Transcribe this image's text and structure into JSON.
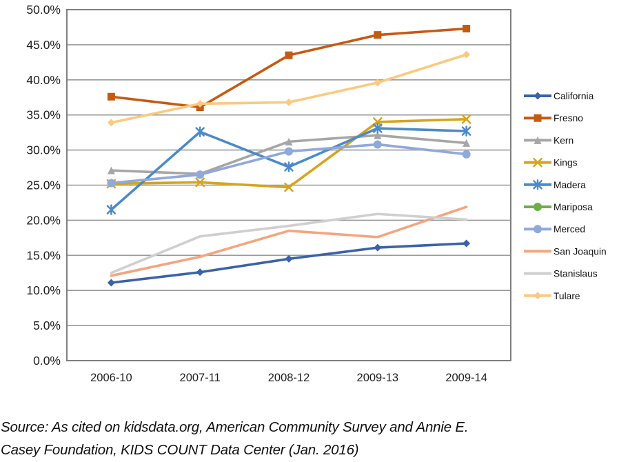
{
  "chart_data": {
    "type": "line",
    "categories": [
      "2006-10",
      "2007-11",
      "2008-12",
      "2009-13",
      "2009-14"
    ],
    "series": [
      {
        "name": "California",
        "color": "#3A62A8",
        "marker": "diamond",
        "values": [
          11.1,
          12.6,
          14.5,
          16.1,
          16.7
        ]
      },
      {
        "name": "Fresno",
        "color": "#C55A11",
        "marker": "square",
        "values": [
          37.6,
          36.1,
          43.5,
          46.4,
          47.3
        ]
      },
      {
        "name": "Kern",
        "color": "#A6A6A6",
        "marker": "triangle",
        "values": [
          27.1,
          26.6,
          31.2,
          32.1,
          31.0
        ]
      },
      {
        "name": "Kings",
        "color": "#D6A41C",
        "marker": "x",
        "values": [
          25.2,
          25.4,
          24.7,
          34.0,
          34.4
        ]
      },
      {
        "name": "Madera",
        "color": "#4C8AC8",
        "marker": "asterisk",
        "values": [
          21.5,
          32.6,
          27.6,
          33.1,
          32.7
        ]
      },
      {
        "name": "Mariposa",
        "color": "#70AD47",
        "marker": "circle",
        "values": [
          null,
          null,
          null,
          null,
          null
        ]
      },
      {
        "name": "Merced",
        "color": "#8FA9DB",
        "marker": "circle",
        "values": [
          25.3,
          26.5,
          29.8,
          30.8,
          29.4
        ]
      },
      {
        "name": "San Joaquin",
        "color": "#F4A57E",
        "marker": "none",
        "values": [
          12.1,
          14.8,
          18.5,
          17.6,
          21.9
        ]
      },
      {
        "name": "Stanislaus",
        "color": "#CFCFCF",
        "marker": "none",
        "values": [
          12.5,
          17.7,
          19.2,
          20.9,
          20.1
        ]
      },
      {
        "name": "Tulare",
        "color": "#FBC97F",
        "marker": "diamond",
        "values": [
          33.9,
          36.6,
          36.8,
          39.6,
          43.6
        ]
      }
    ],
    "title": "",
    "xlabel": "",
    "ylabel": "",
    "ylim": [
      0,
      50
    ],
    "ytick_step": 5,
    "ytick_labels": [
      "0.0%",
      "5.0%",
      "10.0%",
      "15.0%",
      "20.0%",
      "25.0%",
      "30.0%",
      "35.0%",
      "40.0%",
      "45.0%",
      "50.0%"
    ],
    "grid": true,
    "legend_position": "right"
  },
  "source_note": {
    "line1": "Source: As cited on kidsdata.org, American Community Survey and Annie E.",
    "line2": "Casey Foundation, KIDS COUNT Data Center (Jan. 2016)"
  }
}
